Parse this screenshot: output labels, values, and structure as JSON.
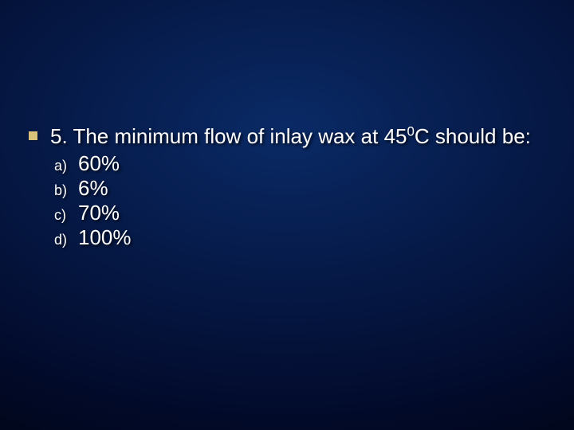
{
  "slide": {
    "background_gradient": {
      "inner": "#0a2a66",
      "mid": "#061b4a",
      "outer": "#020a2a",
      "edge": "#000512"
    },
    "bullet_color": "#d9c37a",
    "text_color": "#ffffff",
    "question_fontsize": 26,
    "option_label_fontsize": 18,
    "option_text_fontsize": 26,
    "question": {
      "prefix": "5. The minimum flow of inlay wax at 45",
      "superscript": "0",
      "suffix": "C should be:"
    },
    "options": [
      {
        "label": "a)",
        "text": "60%"
      },
      {
        "label": "b)",
        "text": "6%"
      },
      {
        "label": "c)",
        "text": "70%"
      },
      {
        "label": "d)",
        "text": "100%"
      }
    ]
  }
}
